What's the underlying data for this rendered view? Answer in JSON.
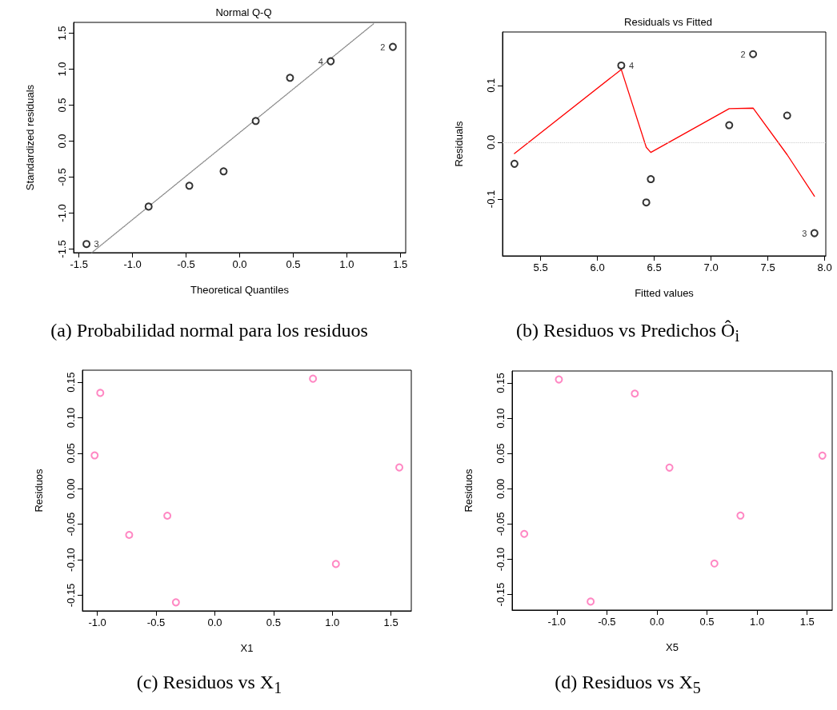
{
  "chart_data": [
    {
      "type": "scatter",
      "title": "Normal Q-Q",
      "xlabel": "Theoretical Quantiles",
      "ylabel": "Standardized residuals",
      "xlim": [
        -1.55,
        1.55
      ],
      "ylim": [
        -1.55,
        1.65
      ],
      "xticks": [
        -1.5,
        {
          "value": -1,
          "label": "-1.0"
        },
        -0.5,
        {
          "value": 0,
          "label": "0.0"
        },
        0.5,
        {
          "value": 1,
          "label": "1.0"
        },
        1.5
      ],
      "yticks": [
        -1.5,
        {
          "value": -1,
          "label": "-1.0"
        },
        -0.5,
        {
          "value": 0,
          "label": "0.0"
        },
        0.5,
        {
          "value": 1,
          "label": "1.0"
        },
        1.5
      ],
      "marker": "circle",
      "grid": false,
      "series": [
        {
          "color": "#000000",
          "x": [
            -1.43,
            -0.85,
            -0.47,
            -0.15,
            0.15,
            0.47,
            0.85,
            1.43
          ],
          "values": [
            -1.43,
            -0.91,
            -0.62,
            -0.42,
            0.28,
            0.88,
            1.11,
            1.31
          ]
        },
        {
          "type": "line",
          "color": "#888888",
          "line_style": "dotted",
          "marker": "none",
          "x": [
            -1.38,
            1.25
          ],
          "values": [
            -1.55,
            1.63
          ]
        }
      ],
      "annotations": [
        {
          "text": "3",
          "x": -1.43,
          "y": -1.43
        },
        {
          "text": "4",
          "x": 0.85,
          "y": 1.11
        },
        {
          "text": "2",
          "x": 1.43,
          "y": 1.31
        },
        "(a) Probabilidad normal para los residuos"
      ]
    },
    {
      "type": "scatter",
      "title": "Residuals vs Fitted",
      "xlabel": "Fitted values",
      "ylabel": "Residuals",
      "xlim": [
        5.165,
        8.01
      ],
      "ylim": [
        -0.2,
        0.194
      ],
      "xticks": [
        5.5,
        {
          "value": 6,
          "label": "6.0"
        },
        6.5,
        {
          "value": 7,
          "label": "7.0"
        },
        7.5,
        {
          "value": 8,
          "label": "8.0"
        }
      ],
      "yticks": [
        -0.1,
        {
          "value": 0,
          "label": "0.0"
        },
        0.1
      ],
      "marker": "circle",
      "grid": false,
      "series": [
        {
          "color": "#000000",
          "x": [
            5.27,
            6.21,
            6.43,
            6.47,
            7.16,
            7.37,
            7.67,
            7.91
          ],
          "values": [
            -0.038,
            0.135,
            -0.106,
            -0.065,
            0.03,
            0.155,
            0.047,
            -0.16
          ]
        },
        {
          "type": "line",
          "color": "#ff0000",
          "line_style": "solid",
          "marker": "none",
          "x": [
            5.27,
            6.21,
            6.43,
            6.47,
            7.16,
            7.37,
            7.67,
            7.91
          ],
          "values": [
            -0.02,
            0.128,
            -0.009,
            -0.018,
            0.059,
            0.06,
            -0.022,
            -0.095
          ]
        }
      ],
      "ref_lines": [
        {
          "axis": "y",
          "value": 0,
          "color": "#cccccc",
          "line_style": "dotted"
        }
      ],
      "annotations": [
        {
          "text": "4",
          "x": 6.21,
          "y": 0.135
        },
        {
          "text": "2",
          "x": 7.37,
          "y": 0.155
        },
        {
          "text": "3",
          "x": 7.91,
          "y": -0.16
        },
        "(b) Residuos vs Predichos Ô$_{i}$"
      ]
    },
    {
      "type": "scatter",
      "xlabel": "X1",
      "ylabel": "Residuos",
      "xlim": [
        -1.127,
        1.673
      ],
      "ylim": [
        -0.172,
        0.167
      ],
      "xticks": [
        {
          "value": -1,
          "label": "-1.0"
        },
        -0.5,
        {
          "value": 0,
          "label": "0.0"
        },
        0.5,
        {
          "value": 1,
          "label": "1.0"
        },
        1.5
      ],
      "yticks": [
        -0.15,
        {
          "value": -0.1,
          "label": "-0.10"
        },
        -0.05,
        {
          "value": 0,
          "label": "0.00"
        },
        0.05,
        {
          "value": 0.1,
          "label": "0.10"
        },
        0.15
      ],
      "marker": "circle",
      "grid": false,
      "series": [
        {
          "color": "#ff69b4",
          "x": [
            -1.023,
            -0.975,
            -0.729,
            -0.404,
            -0.331,
            0.836,
            1.031,
            1.571
          ],
          "values": [
            0.047,
            0.135,
            -0.065,
            -0.038,
            -0.16,
            0.155,
            -0.106,
            0.03
          ]
        }
      ],
      "annotations": [
        "(c) Residuos vs X$_{1}$"
      ]
    },
    {
      "type": "scatter",
      "xlabel": "X5",
      "ylabel": "Residuos",
      "xlim": [
        -1.446,
        1.75
      ],
      "ylim": [
        -0.172,
        0.167
      ],
      "xticks": [
        {
          "value": -1,
          "label": "-1.0"
        },
        -0.5,
        {
          "value": 0,
          "label": "0.0"
        },
        0.5,
        {
          "value": 1,
          "label": "1.0"
        },
        1.5
      ],
      "yticks": [
        -0.15,
        {
          "value": -0.1,
          "label": "-0.10"
        },
        -0.05,
        {
          "value": 0,
          "label": "0.00"
        },
        0.05,
        {
          "value": 0.1,
          "label": "0.10"
        },
        0.15
      ],
      "marker": "circle",
      "grid": false,
      "series": [
        {
          "color": "#ff69b4",
          "x": [
            -1.325,
            -0.979,
            -0.662,
            -0.221,
            0.125,
            0.574,
            0.834,
            1.652
          ],
          "values": [
            -0.064,
            0.155,
            -0.16,
            0.135,
            0.03,
            -0.106,
            -0.038,
            0.047
          ]
        }
      ],
      "annotations": [
        "(d) Residuos vs X$_{5}$"
      ]
    }
  ]
}
